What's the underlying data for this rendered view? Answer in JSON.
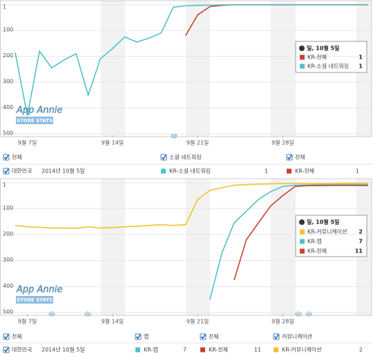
{
  "chart_data": [
    {
      "type": "line",
      "inverted": true,
      "ylim": [
        1,
        500
      ],
      "yticks": [
        1,
        100,
        200,
        300,
        400,
        500
      ],
      "xlim": [
        6,
        35.3
      ],
      "xticks": [
        {
          "value": 7,
          "label": "9월 7일"
        },
        {
          "value": 14,
          "label": "9월 14일"
        },
        {
          "value": 21,
          "label": "9월 21일"
        },
        {
          "value": 28,
          "label": "9월 28일"
        }
      ],
      "grid": true,
      "watermark": "App Annie",
      "watermark_sub": "STORE STATS",
      "legend_title": "일, 10월 5일",
      "series": [
        {
          "name": "KR-전체",
          "color": "#c8412b",
          "x": [
            20,
            21,
            22,
            23,
            24,
            25,
            26,
            27,
            28,
            29,
            30,
            31,
            32,
            33,
            34,
            35
          ],
          "values": [
            120,
            40,
            8,
            3,
            1,
            1,
            1,
            1,
            1,
            1,
            1,
            1,
            1,
            1,
            1,
            1
          ]
        },
        {
          "name": "KR-소셜 네트워킹",
          "color": "#4fc1c9",
          "x": [
            6,
            7,
            8,
            9,
            10,
            11,
            12,
            13,
            14,
            15,
            16,
            17,
            18,
            19,
            20,
            21,
            22,
            23,
            24,
            25,
            26,
            27,
            28,
            29,
            30,
            31,
            32,
            33,
            34,
            35
          ],
          "values": [
            185,
            430,
            180,
            245,
            215,
            190,
            350,
            210,
            170,
            125,
            145,
            130,
            110,
            10,
            5,
            3,
            2,
            1,
            1,
            1,
            1,
            1,
            1,
            1,
            1,
            1,
            1,
            1,
            1,
            1
          ]
        }
      ]
    },
    {
      "type": "line",
      "inverted": true,
      "ylim": [
        1,
        500
      ],
      "yticks": [
        1,
        100,
        200,
        300,
        400,
        500
      ],
      "xlim": [
        6,
        35.3
      ],
      "xticks": [
        {
          "value": 7,
          "label": "9월 7일"
        },
        {
          "value": 14,
          "label": "9월 14일"
        },
        {
          "value": 21,
          "label": "9월 21일"
        },
        {
          "value": 28,
          "label": "9월 28일"
        }
      ],
      "grid": true,
      "watermark": "App Annie",
      "watermark_sub": "STORE STATS",
      "legend_title": "일, 10월 5일",
      "series": [
        {
          "name": "KR-커뮤니케이션",
          "color": "#f5c02a",
          "x": [
            6,
            7,
            8,
            9,
            10,
            11,
            12,
            13,
            14,
            15,
            16,
            17,
            18,
            19,
            20,
            21,
            22,
            23,
            24,
            25,
            26,
            27,
            28,
            29,
            30,
            31,
            32,
            33,
            34,
            35
          ],
          "values": [
            165,
            170,
            172,
            175,
            175,
            176,
            170,
            175,
            173,
            170,
            168,
            165,
            162,
            165,
            162,
            65,
            30,
            20,
            10,
            8,
            6,
            5,
            4,
            4,
            3,
            3,
            3,
            2,
            2,
            2
          ]
        },
        {
          "name": "KR-앱",
          "color": "#4fc1c9",
          "x": [
            22,
            23,
            24,
            25,
            26,
            27,
            28,
            29,
            30,
            31,
            32,
            33,
            34,
            35
          ],
          "values": [
            450,
            270,
            155,
            110,
            65,
            35,
            15,
            10,
            9,
            8,
            8,
            7,
            7,
            7
          ]
        },
        {
          "name": "KR-전체",
          "color": "#c8412b",
          "x": [
            24,
            25,
            26,
            27,
            28,
            29,
            30,
            31,
            32,
            33,
            34,
            35
          ],
          "values": [
            375,
            220,
            155,
            90,
            50,
            15,
            12,
            12,
            11,
            11,
            11,
            11
          ]
        }
      ]
    }
  ],
  "controls": [
    {
      "filters": [
        "전체",
        "소셜 네트워킹",
        "전체"
      ],
      "country": "대한민국",
      "date": "2014년 10월 5일",
      "items": [
        {
          "name": "KR-소셜 네트워킹",
          "value": 1,
          "color": "#4fc1c9"
        },
        {
          "name": "KR-전체",
          "value": 1,
          "color": "#c8412b"
        }
      ]
    },
    {
      "filters": [
        "전체",
        "앱",
        "전체",
        "커뮤니케이션"
      ],
      "country": "대한민국",
      "date": "2014년 10월 5일",
      "items": [
        {
          "name": "KR-앱",
          "value": 7,
          "color": "#4fc1c9"
        },
        {
          "name": "KR-전체",
          "value": 11,
          "color": "#c8412b"
        },
        {
          "name": "KR-커뮤니케이션",
          "value": 2,
          "color": "#f5c02a"
        }
      ]
    }
  ]
}
